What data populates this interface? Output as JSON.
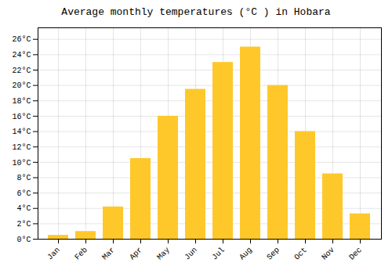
{
  "chart_data": {
    "type": "bar",
    "title": "Average monthly temperatures (°C ) in Hobara",
    "categories": [
      "Jan",
      "Feb",
      "Mar",
      "Apr",
      "May",
      "Jun",
      "Jul",
      "Aug",
      "Sep",
      "Oct",
      "Nov",
      "Dec"
    ],
    "values": [
      0.5,
      1.0,
      4.2,
      10.5,
      16.0,
      19.5,
      23.0,
      25.0,
      20.0,
      14.0,
      8.5,
      3.3
    ],
    "color": "#FFC82A",
    "ylim": [
      0,
      27.5
    ],
    "yticks": [
      {
        "value": 0,
        "label": "0°C"
      },
      {
        "value": 2,
        "label": "2°C"
      },
      {
        "value": 4,
        "label": "4°C"
      },
      {
        "value": 6,
        "label": "6°C"
      },
      {
        "value": 8,
        "label": "8°C"
      },
      {
        "value": 10,
        "label": "10°C"
      },
      {
        "value": 12,
        "label": "12°C"
      },
      {
        "value": 14,
        "label": "14°C"
      },
      {
        "value": 16,
        "label": "16°C"
      },
      {
        "value": 18,
        "label": "18°C"
      },
      {
        "value": 20,
        "label": "20°C"
      },
      {
        "value": 22,
        "label": "22°C"
      },
      {
        "value": 24,
        "label": "24°C"
      },
      {
        "value": 26,
        "label": "26°C"
      }
    ],
    "grid": true
  }
}
